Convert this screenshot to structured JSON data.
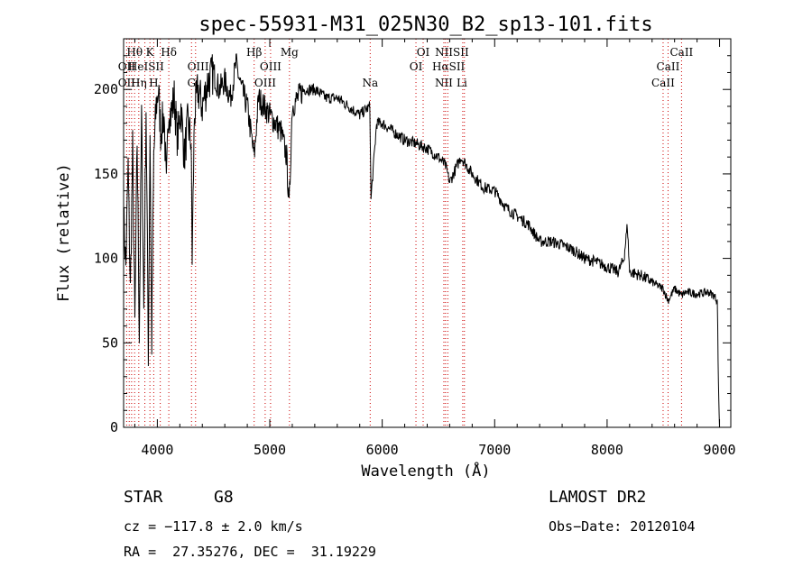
{
  "chart_data": {
    "type": "line",
    "title": "spec-55931-M31_025N30_B2_sp13-101.fits",
    "xlabel": "Wavelength (Å)",
    "ylabel": "Flux (relative)",
    "xlim": [
      3700,
      9100
    ],
    "ylim": [
      0,
      230
    ],
    "x_ticks": [
      4000,
      5000,
      6000,
      7000,
      8000,
      9000
    ],
    "y_ticks": [
      0,
      50,
      100,
      150,
      200
    ],
    "grid": false,
    "series": [
      {
        "x": [
          3700,
          3720,
          3740,
          3760,
          3780,
          3800,
          3820,
          3840,
          3860,
          3880,
          3900,
          3920,
          3935,
          3950,
          3968,
          3990,
          4010,
          4030,
          4060,
          4080,
          4100,
          4120,
          4150,
          4180,
          4210,
          4240,
          4270,
          4300,
          4310,
          4330,
          4360,
          4400,
          4450,
          4500,
          4550,
          4600,
          4650,
          4700,
          4750,
          4800,
          4861,
          4900,
          4950,
          5000,
          5050,
          5100,
          5150,
          5172,
          5200,
          5250,
          5300,
          5400,
          5500,
          5600,
          5700,
          5800,
          5890,
          5900,
          5950,
          6000,
          6100,
          6200,
          6300,
          6400,
          6500,
          6563,
          6600,
          6700,
          6800,
          6900,
          7000,
          7100,
          7200,
          7300,
          7400,
          7500,
          7600,
          7700,
          7800,
          7900,
          8000,
          8100,
          8150,
          8180,
          8200,
          8300,
          8400,
          8498,
          8542,
          8600,
          8662,
          8700,
          8800,
          8900,
          8950,
          8980,
          8990,
          9000
        ],
        "y": [
          125,
          95,
          155,
          80,
          165,
          60,
          170,
          55,
          185,
          70,
          190,
          45,
          175,
          50,
          160,
          190,
          200,
          175,
          185,
          140,
          190,
          185,
          195,
          170,
          190,
          160,
          180,
          170,
          100,
          185,
          200,
          190,
          205,
          210,
          200,
          205,
          195,
          215,
          200,
          190,
          160,
          195,
          190,
          185,
          180,
          175,
          160,
          130,
          190,
          195,
          200,
          200,
          195,
          195,
          190,
          185,
          190,
          135,
          180,
          180,
          175,
          170,
          168,
          165,
          160,
          155,
          145,
          160,
          150,
          142,
          140,
          130,
          125,
          120,
          110,
          110,
          108,
          105,
          100,
          98,
          95,
          92,
          100,
          120,
          92,
          90,
          86,
          82,
          75,
          82,
          78,
          80,
          79,
          80,
          78,
          75,
          25,
          0
        ]
      }
    ],
    "line_labels": [
      {
        "text": "Hθ",
        "x": 3798,
        "row": 1
      },
      {
        "text": "K",
        "x": 3934,
        "row": 1
      },
      {
        "text": "Hδ",
        "x": 4102,
        "row": 1
      },
      {
        "text": "Hβ",
        "x": 4861,
        "row": 1
      },
      {
        "text": "Mg",
        "x": 5175,
        "row": 1
      },
      {
        "text": "OI",
        "x": 6364,
        "row": 1
      },
      {
        "text": "NIISII",
        "x": 6620,
        "row": 1
      },
      {
        "text": "CaII",
        "x": 8662,
        "row": 1
      },
      {
        "text": "OII",
        "x": 3727,
        "row": 2
      },
      {
        "text": "HeISII",
        "x": 3900,
        "row": 2
      },
      {
        "text": "OIII",
        "x": 4363,
        "row": 2
      },
      {
        "text": "OIII",
        "x": 5007,
        "row": 2
      },
      {
        "text": "OI",
        "x": 6300,
        "row": 2
      },
      {
        "text": "HαSII",
        "x": 6590,
        "row": 2
      },
      {
        "text": "CaII",
        "x": 8542,
        "row": 2
      },
      {
        "text": "OII",
        "x": 3727,
        "row": 3
      },
      {
        "text": "Hη",
        "x": 3835,
        "row": 3
      },
      {
        "text": "H",
        "x": 3968,
        "row": 3
      },
      {
        "text": "G",
        "x": 4304,
        "row": 3
      },
      {
        "text": "OIII",
        "x": 4959,
        "row": 3
      },
      {
        "text": "Na",
        "x": 5893,
        "row": 3
      },
      {
        "text": "NII",
        "x": 6548,
        "row": 3
      },
      {
        "text": "Li",
        "x": 6708,
        "row": 3
      },
      {
        "text": "CaII",
        "x": 8498,
        "row": 3
      }
    ],
    "marker_lines": [
      3727,
      3750,
      3771,
      3798,
      3835,
      3889,
      3934,
      3968,
      4026,
      4102,
      4340,
      4304,
      4861,
      4959,
      5007,
      5175,
      5893,
      6300,
      6364,
      6548,
      6563,
      6583,
      6716,
      6731,
      8498,
      8542,
      8662
    ]
  },
  "info": {
    "object_class": "STAR",
    "subclass": "G8",
    "survey": "LAMOST DR2",
    "velocity": "cz = −117.8 ± 2.0 km/s",
    "obs_date": "Obs−Date: 20120104",
    "coords": "RA =  27.35276, DEC =  31.19229"
  },
  "colors": {
    "spectrum": "#000000",
    "marker_line": "#cc0000",
    "axes": "#000000"
  }
}
